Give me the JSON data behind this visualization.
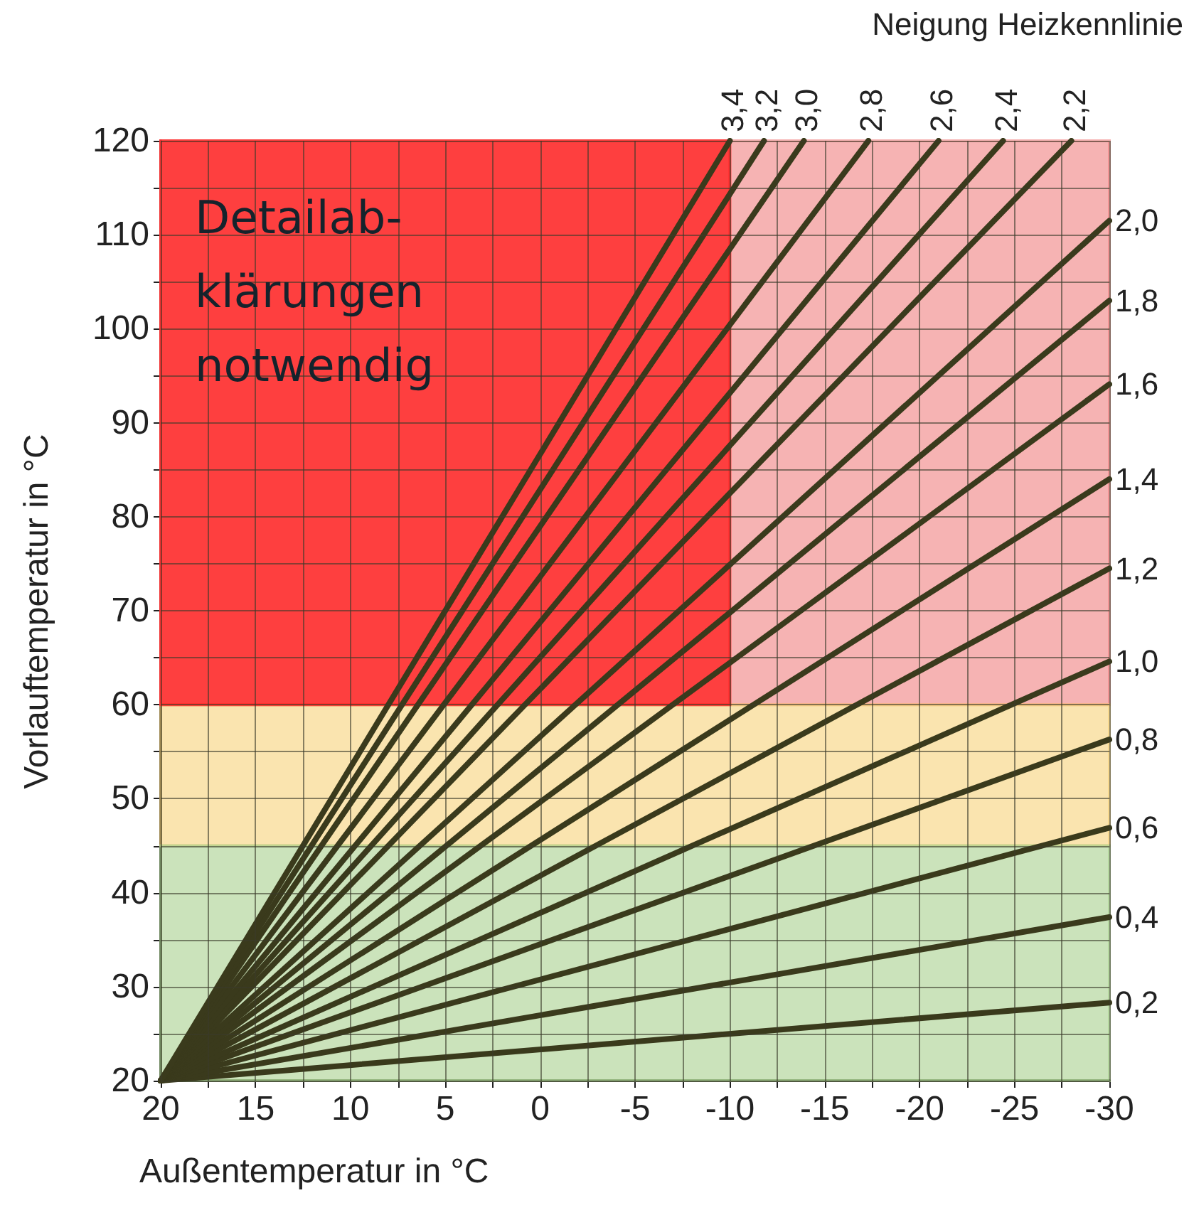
{
  "chart_data": {
    "type": "line",
    "xlabel": "Außentemperatur in °C",
    "ylabel": "Vorlauftemperatur in °C",
    "legend_title": "Neigung Heizkennlinie",
    "xlim": [
      20,
      -30
    ],
    "xticks": [
      20,
      {
        "value": 17.5,
        "label": null
      },
      15,
      {
        "value": 12.5,
        "label": null
      },
      10,
      {
        "value": 7.5,
        "label": null
      },
      5,
      {
        "value": 2.5,
        "label": null
      },
      0,
      {
        "value": -2.5,
        "label": null
      },
      -5,
      {
        "value": -7.5,
        "label": null
      },
      -10,
      {
        "value": -12.5,
        "label": null
      },
      -15,
      {
        "value": -17.5,
        "label": null
      },
      -20,
      {
        "value": -22.5,
        "label": null
      },
      -25,
      {
        "value": -27.5,
        "label": null
      },
      -30
    ],
    "ylim": [
      20,
      120
    ],
    "yticks": [
      20,
      {
        "value": 25,
        "label": null
      },
      30,
      {
        "value": 35,
        "label": null
      },
      40,
      {
        "value": 45,
        "label": null
      },
      50,
      {
        "value": 55,
        "label": null
      },
      60,
      {
        "value": 65,
        "label": null
      },
      70,
      {
        "value": 75,
        "label": null
      },
      80,
      {
        "value": 85,
        "label": null
      },
      90,
      {
        "value": 95,
        "label": null
      },
      100,
      {
        "value": 105,
        "label": null
      },
      110,
      {
        "value": 115,
        "label": null
      },
      120
    ],
    "grid": true,
    "legend": false,
    "marker": "none",
    "line_style": "solid",
    "series": [
      {
        "name": "0,2",
        "color": "#3a3a1c",
        "x": [
          20,
          -30
        ],
        "values": [
          20,
          28.3
        ]
      },
      {
        "name": "0,4",
        "color": "#3a3a1c",
        "x": [
          20,
          -30
        ],
        "values": [
          20,
          37.4
        ]
      },
      {
        "name": "0,6",
        "color": "#3a3a1c",
        "x": [
          20,
          -30
        ],
        "values": [
          20,
          46.9
        ]
      },
      {
        "name": "0,8",
        "color": "#3a3a1c",
        "x": [
          20,
          -30
        ],
        "values": [
          20,
          56.3
        ]
      },
      {
        "name": "1,0",
        "color": "#3a3a1c",
        "x": [
          20,
          -30
        ],
        "values": [
          20,
          64.6
        ]
      },
      {
        "name": "1,2",
        "color": "#3a3a1c",
        "x": [
          20,
          -30
        ],
        "values": [
          20,
          74.5
        ]
      },
      {
        "name": "1,4",
        "color": "#3a3a1c",
        "x": [
          20,
          -30
        ],
        "values": [
          20,
          84
        ]
      },
      {
        "name": "1,6",
        "color": "#3a3a1c",
        "x": [
          20,
          -30
        ],
        "values": [
          20,
          94.1
        ]
      },
      {
        "name": "1,8",
        "color": "#3a3a1c",
        "x": [
          20,
          -30
        ],
        "values": [
          20,
          103
        ]
      },
      {
        "name": "2,0",
        "color": "#3a3a1c",
        "x": [
          20,
          -30
        ],
        "values": [
          20,
          111.5
        ]
      },
      {
        "name": "2,2",
        "color": "#3a3a1c",
        "x": [
          20,
          -28
        ],
        "values": [
          20,
          120
        ]
      },
      {
        "name": "2,4",
        "color": "#3a3a1c",
        "x": [
          20,
          -24.4
        ],
        "values": [
          20,
          120
        ]
      },
      {
        "name": "2,6",
        "color": "#3a3a1c",
        "x": [
          20,
          -21
        ],
        "values": [
          20,
          120
        ]
      },
      {
        "name": "2,8",
        "color": "#3a3a1c",
        "x": [
          20,
          -17.3
        ],
        "values": [
          20,
          120
        ]
      },
      {
        "name": "3,0",
        "color": "#3a3a1c",
        "x": [
          20,
          -13.9
        ],
        "values": [
          20,
          120
        ]
      },
      {
        "name": "3,2",
        "color": "#3a3a1c",
        "x": [
          20,
          -11.8
        ],
        "values": [
          20,
          120
        ]
      },
      {
        "name": "3,4",
        "color": "#3a3a1c",
        "x": [
          20,
          -10
        ],
        "values": [
          20,
          120
        ]
      }
    ],
    "bands": [
      {
        "axis": "y",
        "from": 60,
        "to": 120,
        "color": "#f08080"
      },
      {
        "axis": "y",
        "from": 45,
        "to": 60,
        "color": "#f7d27a"
      },
      {
        "axis": "y",
        "from": 20,
        "to": 45,
        "color": "#a9d08e"
      },
      {
        "axis": "x",
        "from": 20,
        "to": -10,
        "color": "#ff2a2a",
        "label": "Detailab-\nklärungen\nnotwendig"
      }
    ]
  }
}
